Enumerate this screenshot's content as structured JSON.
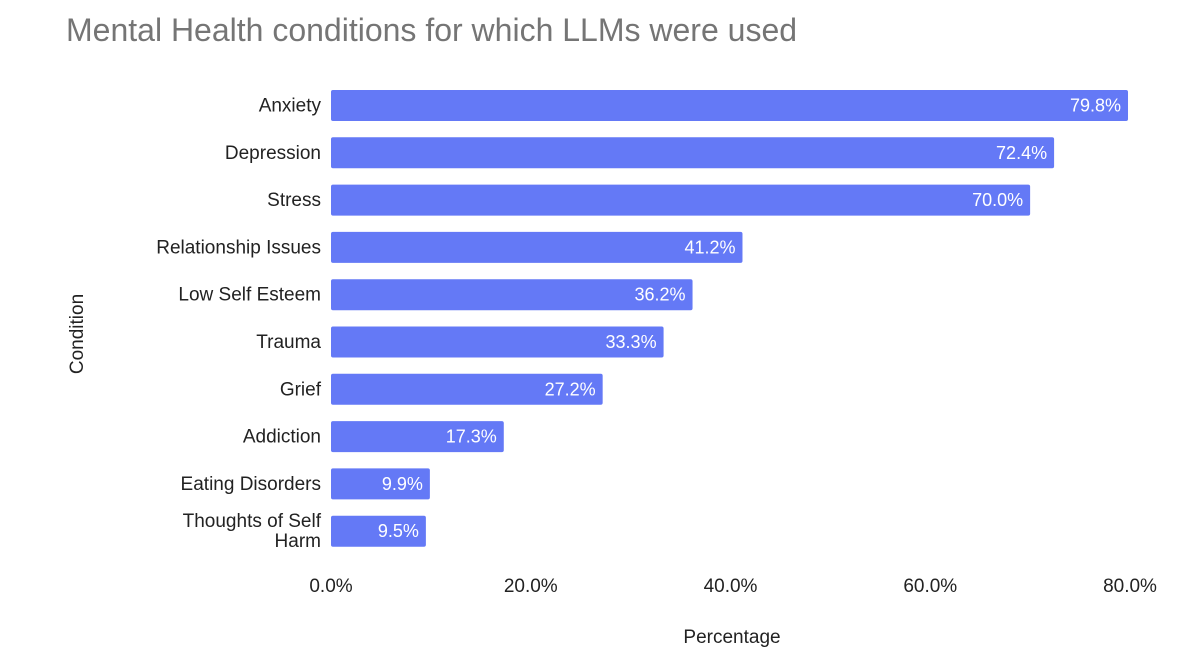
{
  "chart_data": {
    "type": "bar",
    "orientation": "horizontal",
    "title": "Mental Health conditions for which LLMs were used",
    "xlabel": "Percentage",
    "ylabel": "Condition",
    "categories": [
      "Anxiety",
      "Depression",
      "Stress",
      "Relationship Issues",
      "Low Self Esteem",
      "Trauma",
      "Grief",
      "Addiction",
      "Eating Disorders",
      "Thoughts of Self Harm"
    ],
    "values": [
      79.8,
      72.4,
      70.0,
      41.2,
      36.2,
      33.3,
      27.2,
      17.3,
      9.9,
      9.5
    ],
    "data_labels": [
      "79.8%",
      "72.4%",
      "70.0%",
      "41.2%",
      "36.2%",
      "33.3%",
      "27.2%",
      "17.3%",
      "9.9%",
      "9.5%"
    ],
    "x_ticks": [
      0,
      20,
      40,
      60,
      80
    ],
    "x_tick_labels": [
      "0.0%",
      "20.0%",
      "40.0%",
      "60.0%",
      "80.0%"
    ],
    "xlim": [
      0,
      80
    ],
    "grid": false,
    "bar_color": "#6479f6",
    "title_color": "#757575",
    "text_color": "#222222"
  }
}
